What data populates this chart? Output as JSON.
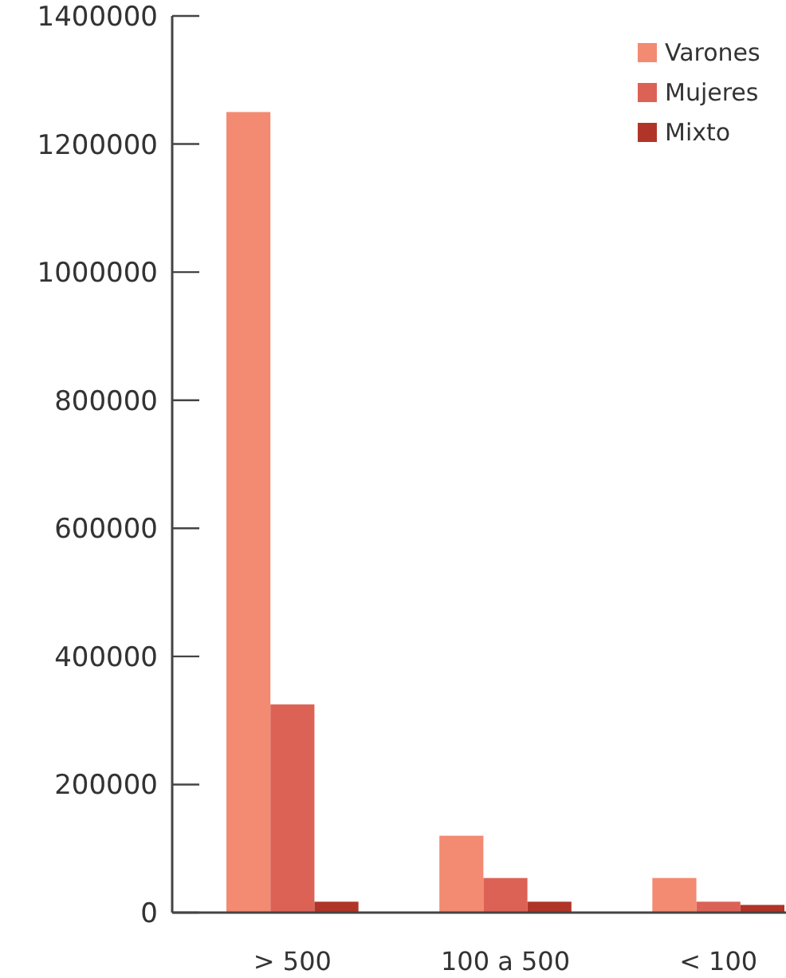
{
  "chart_data": {
    "type": "bar",
    "categories": [
      "> 500",
      "100 a 500",
      "< 100"
    ],
    "series": [
      {
        "name": "Varones",
        "color": "#f38a72",
        "values": [
          1250000,
          120000,
          54000
        ]
      },
      {
        "name": "Mujeres",
        "color": "#dc6256",
        "values": [
          325000,
          54000,
          17000
        ]
      },
      {
        "name": "Mixto",
        "color": "#b03528",
        "values": [
          17000,
          17000,
          12000
        ]
      }
    ],
    "ylim": [
      0,
      1400000
    ],
    "yticks": [
      0,
      200000,
      400000,
      600000,
      800000,
      1000000,
      1200000,
      1400000
    ],
    "grid": false,
    "legend": "top right"
  }
}
